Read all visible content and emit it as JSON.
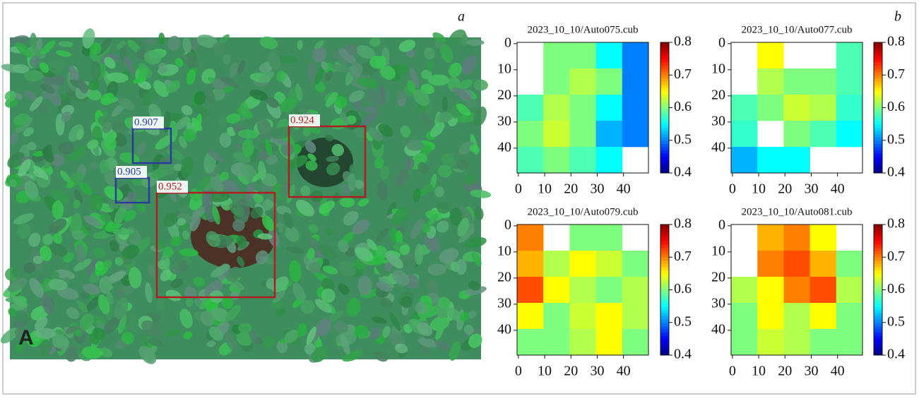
{
  "panel_a": {
    "label": "a",
    "corner_letter": "A",
    "detections": [
      {
        "score": 0.907,
        "color": "#2b3a9c"
      },
      {
        "score": 0.905,
        "color": "#2b3a9c"
      },
      {
        "score": 0.952,
        "color": "#b01d22"
      },
      {
        "score": 0.924,
        "color": "#b01d22"
      }
    ]
  },
  "panel_b_label": "b",
  "chart_data": [
    {
      "type": "heatmap",
      "title": "2023_10_10/Auto075.cub",
      "colormap": "jet",
      "x": [
        0,
        10,
        20,
        30,
        40
      ],
      "y": [
        0,
        10,
        20,
        30,
        40
      ],
      "z": [
        [
          null,
          0.6,
          0.6,
          0.55,
          0.5
        ],
        [
          null,
          0.6,
          0.62,
          0.6,
          0.5
        ],
        [
          0.58,
          0.62,
          0.6,
          0.55,
          0.5
        ],
        [
          0.6,
          0.63,
          0.6,
          0.52,
          0.5
        ],
        [
          0.58,
          0.6,
          0.58,
          0.55,
          null
        ]
      ],
      "xlim": [
        -0.5,
        49.5
      ],
      "ylim": [
        -0.5,
        49.5
      ],
      "xticks": [
        0,
        10,
        20,
        30,
        40
      ],
      "yticks": [
        0,
        10,
        20,
        30,
        40
      ],
      "clim": [
        0.4,
        0.8
      ],
      "cticks": [
        0.4,
        0.5,
        0.6,
        0.7,
        0.8
      ]
    },
    {
      "type": "heatmap",
      "title": "2023_10_10/Auto077.cub",
      "colormap": "jet",
      "x": [
        0,
        10,
        20,
        30,
        40
      ],
      "y": [
        0,
        10,
        20,
        30,
        40
      ],
      "z": [
        [
          null,
          0.65,
          null,
          null,
          0.58
        ],
        [
          null,
          0.62,
          0.6,
          0.6,
          0.58
        ],
        [
          0.58,
          0.6,
          0.63,
          0.62,
          0.57
        ],
        [
          0.57,
          null,
          0.6,
          0.58,
          0.55
        ],
        [
          0.52,
          0.55,
          0.55,
          null,
          null
        ]
      ],
      "xlim": [
        -0.5,
        49.5
      ],
      "ylim": [
        -0.5,
        49.5
      ],
      "xticks": [
        0,
        10,
        20,
        30,
        40
      ],
      "yticks": [
        0,
        10,
        20,
        30,
        40
      ],
      "clim": [
        0.4,
        0.8
      ],
      "cticks": [
        0.4,
        0.5,
        0.6,
        0.7,
        0.8
      ]
    },
    {
      "type": "heatmap",
      "title": "2023_10_10/Auto079.cub",
      "colormap": "jet",
      "x": [
        0,
        10,
        20,
        30,
        40
      ],
      "y": [
        0,
        10,
        20,
        30,
        40
      ],
      "z": [
        [
          0.7,
          null,
          0.6,
          0.6,
          null
        ],
        [
          0.68,
          0.62,
          0.65,
          0.63,
          0.6
        ],
        [
          0.72,
          0.65,
          0.62,
          0.6,
          0.62
        ],
        [
          0.65,
          0.6,
          0.63,
          0.65,
          0.62
        ],
        [
          0.6,
          0.6,
          0.62,
          0.65,
          0.6
        ]
      ],
      "xlim": [
        -0.5,
        49.5
      ],
      "ylim": [
        -0.5,
        49.5
      ],
      "xticks": [
        0,
        10,
        20,
        30,
        40
      ],
      "yticks": [
        0,
        10,
        20,
        30,
        40
      ],
      "clim": [
        0.4,
        0.8
      ],
      "cticks": [
        0.4,
        0.5,
        0.6,
        0.7,
        0.8
      ]
    },
    {
      "type": "heatmap",
      "title": "2023_10_10/Auto081.cub",
      "colormap": "jet",
      "x": [
        0,
        10,
        20,
        30,
        40
      ],
      "y": [
        0,
        10,
        20,
        30,
        40
      ],
      "z": [
        [
          null,
          0.68,
          0.7,
          0.65,
          null
        ],
        [
          null,
          0.7,
          0.72,
          0.68,
          0.6
        ],
        [
          0.62,
          0.65,
          0.7,
          0.72,
          0.62
        ],
        [
          0.6,
          0.65,
          0.62,
          0.65,
          0.6
        ],
        [
          0.6,
          0.63,
          0.62,
          0.6,
          0.6
        ]
      ],
      "xlim": [
        -0.5,
        49.5
      ],
      "ylim": [
        -0.5,
        49.5
      ],
      "xticks": [
        0,
        10,
        20,
        30,
        40
      ],
      "yticks": [
        0,
        10,
        20,
        30,
        40
      ],
      "clim": [
        0.4,
        0.8
      ],
      "cticks": [
        0.4,
        0.5,
        0.6,
        0.7,
        0.8
      ]
    }
  ]
}
